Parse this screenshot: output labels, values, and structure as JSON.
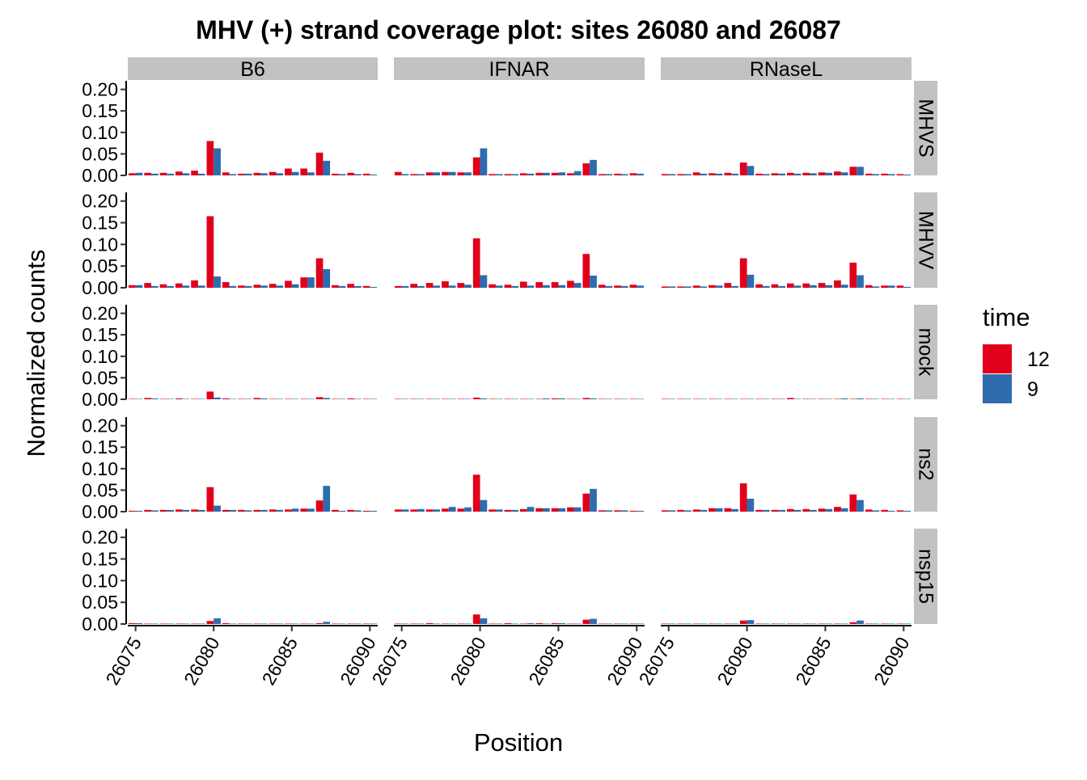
{
  "chart_data": {
    "type": "bar",
    "title": "MHV (+) strand coverage plot: sites 26080 and 26087",
    "xlabel": "Position",
    "ylabel": "Normalized counts",
    "ylim": [
      0,
      0.22
    ],
    "xlim": [
      26074.5,
      26090.5
    ],
    "y_ticks": [
      "0.00",
      "0.05",
      "0.10",
      "0.15",
      "0.20"
    ],
    "y_tick_values": [
      0,
      0.05,
      0.1,
      0.15,
      0.2
    ],
    "x_ticks": [
      "26075",
      "26080",
      "26085",
      "26090"
    ],
    "x_tick_values": [
      26075,
      26080,
      26085,
      26090
    ],
    "x": [
      26075,
      26076,
      26077,
      26078,
      26079,
      26080,
      26081,
      26082,
      26083,
      26084,
      26085,
      26086,
      26087,
      26088,
      26089,
      26090
    ],
    "columns": [
      "B6",
      "IFNAR",
      "RNaseL"
    ],
    "rows": [
      "MHVS",
      "MHVV",
      "mock",
      "ns2",
      "nsp15"
    ],
    "legend": {
      "title": "time",
      "position": "right",
      "items": [
        {
          "label": "12",
          "color": "#E41A1C"
        },
        {
          "label": "9",
          "color": "#377EB8"
        }
      ]
    },
    "series_colors": {
      "12": "#E0001B",
      "9": "#2E6CAD"
    },
    "panels": {
      "B6": {
        "MHVS": {
          "12": [
            0.005,
            0.006,
            0.006,
            0.009,
            0.011,
            0.08,
            0.007,
            0.004,
            0.006,
            0.008,
            0.016,
            0.016,
            0.053,
            0.004,
            0.006,
            0.004
          ],
          "9": [
            0.006,
            0.004,
            0.004,
            0.005,
            0.004,
            0.063,
            0.003,
            0.004,
            0.005,
            0.005,
            0.008,
            0.007,
            0.034,
            0.003,
            0.003,
            0.002
          ]
        },
        "MHVV": {
          "12": [
            0.006,
            0.011,
            0.008,
            0.01,
            0.017,
            0.165,
            0.013,
            0.005,
            0.007,
            0.009,
            0.016,
            0.024,
            0.068,
            0.006,
            0.009,
            0.004
          ],
          "9": [
            0.006,
            0.004,
            0.004,
            0.005,
            0.005,
            0.026,
            0.004,
            0.004,
            0.005,
            0.005,
            0.008,
            0.024,
            0.043,
            0.004,
            0.004,
            0.002
          ]
        },
        "mock": {
          "12": [
            0.001,
            0.003,
            0.001,
            0.002,
            0.001,
            0.018,
            0.002,
            0.001,
            0.003,
            0.001,
            0.001,
            0.001,
            0.005,
            0.001,
            0.002,
            0.001
          ],
          "9": [
            0.001,
            0.002,
            0.001,
            0.001,
            0.001,
            0.004,
            0.001,
            0.001,
            0.002,
            0.001,
            0.001,
            0.001,
            0.003,
            0.001,
            0.001,
            0.001
          ]
        },
        "ns2": {
          "12": [
            0.002,
            0.004,
            0.004,
            0.005,
            0.005,
            0.057,
            0.004,
            0.004,
            0.004,
            0.005,
            0.005,
            0.007,
            0.026,
            0.004,
            0.004,
            0.002
          ],
          "9": [
            0.002,
            0.003,
            0.004,
            0.004,
            0.004,
            0.014,
            0.004,
            0.003,
            0.004,
            0.004,
            0.007,
            0.007,
            0.06,
            0.002,
            0.003,
            0.002
          ]
        },
        "nsp15": {
          "12": [
            0.002,
            0.001,
            0.001,
            0.001,
            0.001,
            0.007,
            0.002,
            0.001,
            0.001,
            0.001,
            0.001,
            0.001,
            0.002,
            0.001,
            0.001,
            0.001
          ],
          "9": [
            0.002,
            0.001,
            0.001,
            0.001,
            0.001,
            0.013,
            0.001,
            0.001,
            0.001,
            0.001,
            0.001,
            0.001,
            0.005,
            0.001,
            0.001,
            0.001
          ]
        }
      },
      "IFNAR": {
        "MHVS": {
          "12": [
            0.008,
            0.003,
            0.007,
            0.008,
            0.007,
            0.042,
            0.003,
            0.003,
            0.005,
            0.006,
            0.006,
            0.005,
            0.028,
            0.003,
            0.004,
            0.005
          ],
          "9": [
            0.003,
            0.003,
            0.007,
            0.008,
            0.007,
            0.063,
            0.003,
            0.003,
            0.004,
            0.006,
            0.007,
            0.01,
            0.036,
            0.003,
            0.003,
            0.004
          ]
        },
        "MHVV": {
          "12": [
            0.004,
            0.009,
            0.011,
            0.015,
            0.011,
            0.114,
            0.008,
            0.007,
            0.014,
            0.013,
            0.013,
            0.016,
            0.078,
            0.007,
            0.005,
            0.007
          ],
          "9": [
            0.004,
            0.004,
            0.005,
            0.005,
            0.007,
            0.029,
            0.005,
            0.004,
            0.005,
            0.006,
            0.006,
            0.011,
            0.028,
            0.004,
            0.004,
            0.005
          ]
        },
        "mock": {
          "12": [
            0.001,
            0.001,
            0.001,
            0.001,
            0.001,
            0.004,
            0.001,
            0.001,
            0.001,
            0.001,
            0.002,
            0.001,
            0.003,
            0.001,
            0.001,
            0.001
          ],
          "9": [
            0.001,
            0.001,
            0.001,
            0.001,
            0.001,
            0.002,
            0.001,
            0.001,
            0.001,
            0.002,
            0.002,
            0.001,
            0.002,
            0.001,
            0.001,
            0.001
          ]
        },
        "ns2": {
          "12": [
            0.005,
            0.005,
            0.005,
            0.007,
            0.007,
            0.086,
            0.005,
            0.004,
            0.006,
            0.008,
            0.008,
            0.01,
            0.042,
            0.003,
            0.003,
            0.002
          ],
          "9": [
            0.005,
            0.006,
            0.005,
            0.011,
            0.01,
            0.027,
            0.005,
            0.004,
            0.011,
            0.008,
            0.008,
            0.01,
            0.053,
            0.003,
            0.003,
            0.002
          ]
        },
        "nsp15": {
          "12": [
            0.001,
            0.001,
            0.002,
            0.001,
            0.001,
            0.022,
            0.001,
            0.002,
            0.001,
            0.002,
            0.002,
            0.001,
            0.01,
            0.001,
            0.001,
            0.001
          ],
          "9": [
            0.001,
            0.001,
            0.001,
            0.001,
            0.001,
            0.013,
            0.001,
            0.001,
            0.002,
            0.001,
            0.002,
            0.001,
            0.012,
            0.001,
            0.001,
            0.001
          ]
        }
      },
      "RNaseL": {
        "MHVS": {
          "12": [
            0.003,
            0.003,
            0.007,
            0.005,
            0.006,
            0.03,
            0.004,
            0.005,
            0.006,
            0.006,
            0.007,
            0.009,
            0.02,
            0.004,
            0.004,
            0.003
          ],
          "9": [
            0.003,
            0.003,
            0.004,
            0.004,
            0.004,
            0.022,
            0.003,
            0.004,
            0.004,
            0.005,
            0.006,
            0.007,
            0.02,
            0.003,
            0.003,
            0.002
          ]
        },
        "MHVV": {
          "12": [
            0.003,
            0.003,
            0.005,
            0.006,
            0.011,
            0.068,
            0.008,
            0.008,
            0.01,
            0.01,
            0.011,
            0.017,
            0.058,
            0.006,
            0.005,
            0.005
          ],
          "9": [
            0.003,
            0.003,
            0.003,
            0.005,
            0.004,
            0.03,
            0.004,
            0.004,
            0.005,
            0.006,
            0.006,
            0.007,
            0.029,
            0.003,
            0.005,
            0.002
          ]
        },
        "mock": {
          "12": [
            0.001,
            0.001,
            0.001,
            0.001,
            0.001,
            0.001,
            0.001,
            0.001,
            0.003,
            0.001,
            0.001,
            0.001,
            0.001,
            0.001,
            0.001,
            0.001
          ],
          "9": [
            0.001,
            0.001,
            0.001,
            0.001,
            0.001,
            0.001,
            0.001,
            0.001,
            0.001,
            0.001,
            0.001,
            0.002,
            0.002,
            0.001,
            0.001,
            0.001
          ]
        },
        "ns2": {
          "12": [
            0.003,
            0.004,
            0.005,
            0.008,
            0.008,
            0.066,
            0.004,
            0.004,
            0.006,
            0.006,
            0.007,
            0.011,
            0.04,
            0.005,
            0.004,
            0.003
          ],
          "9": [
            0.003,
            0.003,
            0.004,
            0.008,
            0.006,
            0.03,
            0.004,
            0.004,
            0.004,
            0.004,
            0.006,
            0.008,
            0.027,
            0.003,
            0.002,
            0.002
          ]
        },
        "nsp15": {
          "12": [
            0.001,
            0.001,
            0.001,
            0.001,
            0.001,
            0.008,
            0.001,
            0.001,
            0.001,
            0.001,
            0.001,
            0.001,
            0.004,
            0.001,
            0.001,
            0.001
          ],
          "9": [
            0.001,
            0.001,
            0.001,
            0.001,
            0.001,
            0.009,
            0.001,
            0.001,
            0.001,
            0.001,
            0.001,
            0.001,
            0.008,
            0.001,
            0.001,
            0.001
          ]
        }
      }
    }
  }
}
